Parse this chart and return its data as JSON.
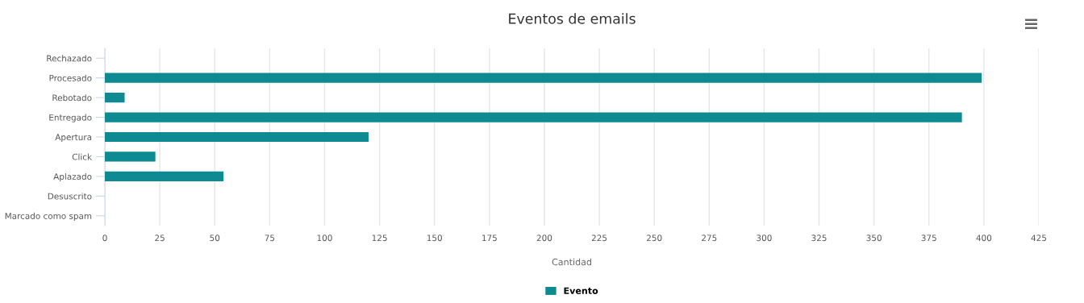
{
  "chart_data": {
    "type": "bar",
    "orientation": "horizontal",
    "title": "Eventos de emails",
    "xlabel": "Cantidad",
    "categories": [
      "Rechazado",
      "Procesado",
      "Rebotado",
      "Entregado",
      "Apertura",
      "Click",
      "Aplazado",
      "Desuscrito",
      "Marcado como spam"
    ],
    "series": [
      {
        "name": "Evento",
        "color": "#0e8a93",
        "values": [
          0,
          399,
          9,
          390,
          120,
          23,
          54,
          0,
          0
        ]
      }
    ],
    "xlim": [
      0,
      425
    ],
    "xticks": [
      0,
      25,
      50,
      75,
      100,
      125,
      150,
      175,
      200,
      225,
      250,
      275,
      300,
      325,
      350,
      375,
      400,
      425
    ],
    "grid": "x",
    "legend": "bottom"
  }
}
